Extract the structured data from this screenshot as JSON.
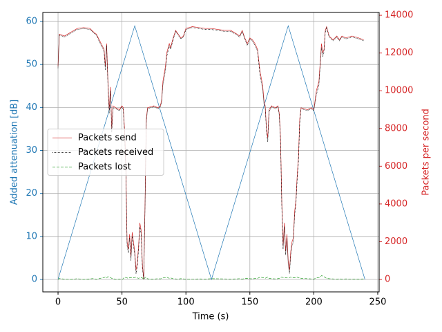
{
  "chart_data": {
    "type": "line",
    "xlabel": "Time (s)",
    "ylabel": "Added attenuation [dB]",
    "y2label": "Packets per second",
    "xlim": [
      -11.9,
      251.1
    ],
    "xticks": [
      0,
      50,
      100,
      150,
      200,
      250
    ],
    "ylim": [
      -2.9,
      62.1
    ],
    "yticks": [
      0,
      10,
      20,
      30,
      40,
      50,
      60
    ],
    "y2lim": [
      -660,
      14150
    ],
    "y2ticks": [
      0,
      2000,
      4000,
      6000,
      8000,
      10000,
      12000,
      14000
    ],
    "grid": true,
    "legend_loc": "center left",
    "ylabel_color": "#1f77b4",
    "y2label_color": "#d62728",
    "series": [
      {
        "color": "#1f77b4",
        "axis": "y",
        "linestyle": "solid",
        "x": [
          0,
          60,
          120,
          180,
          240
        ],
        "values": [
          0,
          59,
          0,
          59,
          0
        ]
      },
      {
        "name": "Packets send",
        "color": "#d62728",
        "axis": "y2",
        "linestyle": "solid",
        "x": [
          0,
          1,
          5,
          10,
          15,
          20,
          25,
          28,
          30,
          33,
          36,
          37,
          38,
          39,
          40,
          41,
          42,
          43,
          45,
          48,
          50,
          51,
          52,
          53,
          54,
          55,
          56,
          57,
          58,
          60,
          61,
          62,
          63,
          64,
          65,
          66,
          67,
          68,
          69,
          70,
          75,
          78,
          80,
          81,
          82,
          84,
          85,
          87,
          88,
          90,
          92,
          94,
          96,
          98,
          100,
          105,
          110,
          115,
          120,
          130,
          135,
          140,
          142,
          144,
          146,
          148,
          150,
          152,
          154,
          156,
          158,
          160,
          161,
          162,
          163,
          164,
          165,
          167,
          170,
          172,
          173,
          174,
          175,
          176,
          177,
          178,
          179,
          180,
          181,
          182,
          183,
          184,
          185,
          186,
          187,
          188,
          189,
          190,
          195,
          198,
          200,
          202,
          204,
          205,
          206,
          207,
          208,
          209,
          210,
          212,
          215,
          218,
          220,
          222,
          225,
          230,
          235,
          239
        ],
        "values": [
          11300,
          13000,
          12900,
          13100,
          13300,
          13350,
          13300,
          13100,
          13000,
          12600,
          12200,
          11300,
          12500,
          10500,
          9000,
          10200,
          8000,
          9200,
          9100,
          9000,
          9200,
          9100,
          8000,
          6000,
          2000,
          1600,
          2400,
          1200,
          2500,
          1500,
          500,
          900,
          1800,
          3000,
          2600,
          800,
          0,
          4000,
          8500,
          9100,
          9200,
          9100,
          9200,
          9500,
          10500,
          11300,
          12000,
          12500,
          12300,
          12800,
          13200,
          13000,
          12800,
          12900,
          13300,
          13400,
          13350,
          13300,
          13300,
          13200,
          13200,
          13000,
          12900,
          13200,
          12800,
          12500,
          12800,
          12700,
          12500,
          12200,
          11000,
          10300,
          9500,
          9200,
          8000,
          7500,
          9000,
          9200,
          9100,
          9200,
          8800,
          7500,
          4000,
          1800,
          3000,
          1500,
          2400,
          1000,
          500,
          1500,
          2000,
          2200,
          3600,
          4200,
          5500,
          6500,
          8500,
          9100,
          9000,
          9100,
          9000,
          10000,
          10500,
          11500,
          12500,
          12000,
          12200,
          13200,
          13400,
          12900,
          12700,
          12900,
          12700,
          12900,
          12800,
          12900,
          12800,
          12700
        ]
      },
      {
        "name": "Packets received",
        "color": "#000000",
        "axis": "y2",
        "linestyle": "dotted",
        "x": [
          0,
          1,
          5,
          10,
          15,
          20,
          25,
          28,
          30,
          33,
          36,
          37,
          38,
          39,
          40,
          41,
          42,
          43,
          45,
          48,
          50,
          51,
          52,
          53,
          54,
          55,
          56,
          57,
          58,
          60,
          61,
          62,
          63,
          64,
          65,
          66,
          67,
          68,
          69,
          70,
          75,
          78,
          80,
          81,
          82,
          84,
          85,
          87,
          88,
          90,
          92,
          94,
          96,
          98,
          100,
          105,
          110,
          115,
          120,
          130,
          135,
          140,
          142,
          144,
          146,
          148,
          150,
          152,
          154,
          156,
          158,
          160,
          161,
          162,
          163,
          164,
          165,
          167,
          170,
          172,
          173,
          174,
          175,
          176,
          177,
          178,
          179,
          180,
          181,
          182,
          183,
          184,
          185,
          186,
          187,
          188,
          189,
          190,
          195,
          198,
          200,
          202,
          204,
          205,
          206,
          207,
          208,
          209,
          210,
          212,
          215,
          218,
          220,
          222,
          225,
          230,
          235,
          239
        ],
        "values": [
          11200,
          12950,
          12850,
          13050,
          13250,
          13300,
          13250,
          13050,
          12950,
          12500,
          12100,
          11100,
          12400,
          10300,
          8800,
          10000,
          7800,
          9100,
          9050,
          8950,
          9150,
          9000,
          7800,
          5800,
          1800,
          1400,
          2200,
          1000,
          2300,
          1300,
          300,
          700,
          1600,
          2800,
          2400,
          600,
          0,
          3800,
          8300,
          9050,
          9150,
          9050,
          9150,
          9400,
          10300,
          11100,
          11800,
          12400,
          12200,
          12700,
          13150,
          12950,
          12750,
          12850,
          13250,
          13350,
          13300,
          13250,
          13250,
          13150,
          13150,
          12950,
          12850,
          13150,
          12750,
          12400,
          12750,
          12650,
          12400,
          12100,
          10800,
          10100,
          9300,
          9100,
          7800,
          7300,
          8900,
          9150,
          9050,
          9150,
          8700,
          7300,
          3800,
          1600,
          2800,
          1300,
          2200,
          800,
          300,
          1300,
          1800,
          2000,
          3400,
          4000,
          5300,
          6300,
          8300,
          9050,
          8950,
          9050,
          8950,
          9800,
          10300,
          11300,
          12300,
          11800,
          12100,
          13100,
          13350,
          12850,
          12650,
          12850,
          12650,
          12850,
          12750,
          12850,
          12750,
          12650
        ]
      },
      {
        "name": "Packets lost",
        "color": "#2ca02c",
        "axis": "y2",
        "linestyle": "dashed",
        "x": [
          0,
          1,
          5,
          10,
          15,
          20,
          25,
          28,
          30,
          33,
          36,
          37,
          38,
          39,
          40,
          41,
          42,
          43,
          45,
          48,
          50,
          51,
          52,
          53,
          54,
          55,
          56,
          57,
          58,
          60,
          61,
          62,
          63,
          64,
          65,
          66,
          67,
          68,
          69,
          70,
          75,
          78,
          80,
          81,
          82,
          84,
          85,
          87,
          88,
          90,
          92,
          94,
          96,
          98,
          100,
          105,
          110,
          115,
          120,
          130,
          135,
          140,
          142,
          144,
          146,
          148,
          150,
          152,
          154,
          156,
          158,
          160,
          161,
          162,
          163,
          164,
          165,
          167,
          170,
          172,
          173,
          174,
          175,
          176,
          177,
          178,
          179,
          180,
          181,
          182,
          183,
          184,
          185,
          186,
          187,
          188,
          189,
          190,
          195,
          198,
          200,
          202,
          204,
          205,
          206,
          207,
          208,
          209,
          210,
          212,
          215,
          218,
          220,
          222,
          225,
          230,
          235,
          239
        ],
        "values": [
          0,
          50,
          20,
          0,
          40,
          0,
          30,
          50,
          0,
          60,
          100,
          120,
          80,
          150,
          120,
          100,
          60,
          50,
          0,
          20,
          0,
          40,
          120,
          100,
          80,
          60,
          90,
          100,
          80,
          100,
          120,
          80,
          60,
          90,
          100,
          80,
          0,
          100,
          120,
          30,
          20,
          40,
          30,
          50,
          80,
          100,
          120,
          60,
          80,
          40,
          30,
          20,
          40,
          30,
          20,
          10,
          30,
          20,
          40,
          30,
          20,
          30,
          40,
          20,
          50,
          60,
          40,
          30,
          50,
          60,
          120,
          100,
          80,
          60,
          100,
          120,
          60,
          40,
          30,
          40,
          60,
          100,
          120,
          100,
          90,
          100,
          80,
          100,
          100,
          120,
          80,
          100,
          90,
          100,
          120,
          80,
          100,
          60,
          40,
          30,
          20,
          80,
          100,
          120,
          200,
          180,
          150,
          100,
          60,
          40,
          30,
          20,
          30,
          20,
          30,
          20,
          20,
          30
        ]
      }
    ]
  }
}
